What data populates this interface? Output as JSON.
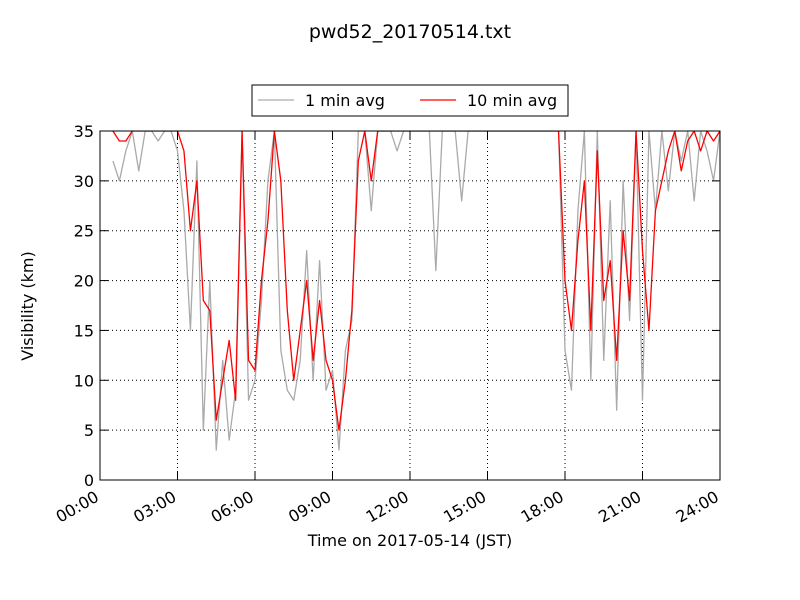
{
  "chart_data": {
    "type": "line",
    "title": "pwd52_20170514.txt",
    "xlabel": "Time on 2017-05-14 (JST)",
    "ylabel": "Visibility (km)",
    "x": [
      0.5,
      0.75,
      1,
      1.25,
      1.5,
      1.75,
      2,
      2.25,
      2.5,
      2.75,
      3,
      3.25,
      3.5,
      3.75,
      4,
      4.25,
      4.5,
      4.75,
      5,
      5.25,
      5.5,
      5.75,
      6,
      6.25,
      6.5,
      6.75,
      7,
      7.25,
      7.5,
      7.75,
      8,
      8.25,
      8.5,
      8.75,
      9,
      9.25,
      9.5,
      9.75,
      10,
      10.25,
      10.5,
      10.75,
      11,
      11.25,
      11.5,
      11.75,
      12,
      12.25,
      12.5,
      12.75,
      13,
      13.25,
      13.5,
      13.75,
      14,
      14.25,
      14.5,
      14.75,
      15,
      15.25,
      15.5,
      15.75,
      16,
      16.25,
      16.5,
      16.75,
      17,
      17.25,
      17.5,
      17.75,
      18,
      18.25,
      18.5,
      18.75,
      19,
      19.25,
      19.5,
      19.75,
      20,
      20.25,
      20.5,
      20.75,
      21,
      21.25,
      21.5,
      21.75,
      22,
      22.25,
      22.5,
      22.75,
      23,
      23.25,
      23.5,
      23.75,
      24
    ],
    "series": [
      {
        "name": "1 min avg",
        "color": "#aaaaaa",
        "values": [
          32,
          30,
          33,
          35,
          31,
          35,
          35,
          34,
          35,
          35,
          33,
          27,
          15,
          32,
          5,
          20,
          3,
          12,
          4,
          9,
          35,
          8,
          10,
          18,
          30,
          35,
          13,
          9,
          8,
          12,
          23,
          10,
          22,
          9,
          11,
          3,
          13,
          16,
          35,
          35,
          27,
          35,
          35,
          35,
          33,
          35,
          35,
          35,
          35,
          35,
          21,
          35,
          35,
          35,
          28,
          35,
          35,
          35,
          35,
          35,
          35,
          35,
          35,
          35,
          35,
          35,
          35,
          35,
          35,
          35,
          13,
          9,
          27,
          35,
          10,
          35,
          12,
          28,
          7,
          30,
          16,
          35,
          8,
          35,
          27,
          35,
          29,
          35,
          32,
          35,
          28,
          35,
          33,
          30,
          35
        ]
      },
      {
        "name": "10 min avg",
        "color": "#ff0000",
        "values": [
          35,
          34,
          34,
          35,
          35,
          35,
          35,
          35,
          35,
          35,
          35,
          33,
          25,
          30,
          18,
          17,
          6,
          10,
          14,
          8,
          35,
          12,
          11,
          20,
          26,
          35,
          30,
          17,
          10,
          15,
          20,
          12,
          18,
          12,
          10,
          5,
          10,
          17,
          32,
          35,
          30,
          35,
          35,
          35,
          35,
          35,
          35,
          35,
          35,
          35,
          35,
          35,
          35,
          35,
          35,
          35,
          35,
          35,
          35,
          35,
          35,
          35,
          35,
          35,
          35,
          35,
          35,
          35,
          35,
          35,
          20,
          15,
          24,
          30,
          15,
          33,
          18,
          22,
          12,
          25,
          18,
          35,
          23,
          15,
          27,
          30,
          33,
          35,
          31,
          34,
          35,
          33,
          35,
          34,
          35
        ]
      }
    ],
    "xlim": [
      0,
      24
    ],
    "xticks": [
      {
        "value": 0,
        "label": "00:00"
      },
      {
        "value": 3,
        "label": "03:00"
      },
      {
        "value": 6,
        "label": "06:00"
      },
      {
        "value": 9,
        "label": "09:00"
      },
      {
        "value": 12,
        "label": "12:00"
      },
      {
        "value": 15,
        "label": "15:00"
      },
      {
        "value": 18,
        "label": "18:00"
      },
      {
        "value": 21,
        "label": "21:00"
      },
      {
        "value": 24,
        "label": "24:00"
      }
    ],
    "ylim": [
      0,
      35
    ],
    "yticks": [
      0,
      5,
      10,
      15,
      20,
      25,
      30,
      35
    ],
    "grid": true,
    "legend": "top"
  }
}
